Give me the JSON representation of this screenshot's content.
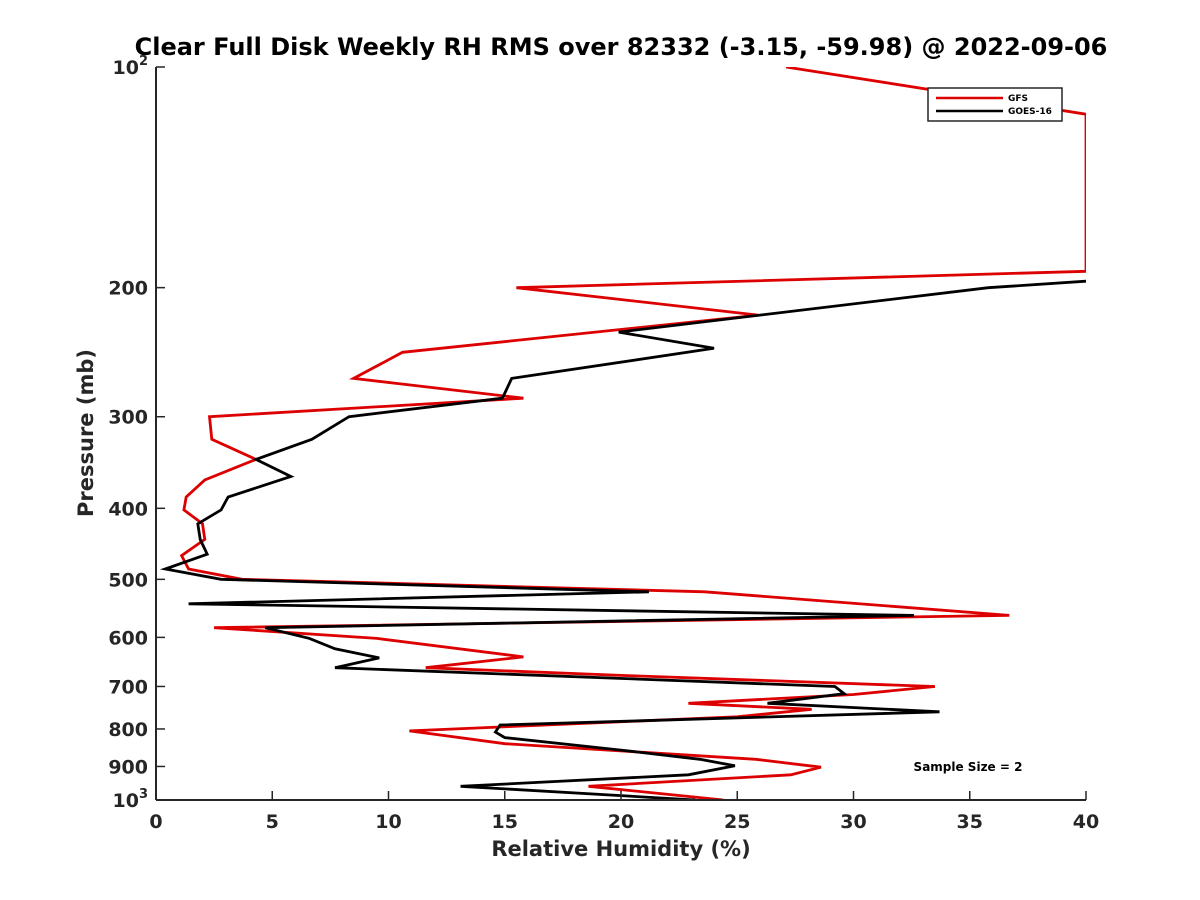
{
  "chart_data": {
    "type": "line",
    "title": "Clear Full Disk Weekly RH RMS over 82332 (-3.15, -59.98) @ 2022-09-06",
    "xlabel": "Relative Humidity (%)",
    "ylabel": "Pressure (mb)",
    "xlim": [
      0,
      40
    ],
    "ylim": [
      100,
      1000
    ],
    "y_scale": "log",
    "y_reversed": true,
    "x_ticks": [
      "0",
      "5",
      "10",
      "15",
      "20",
      "25",
      "30",
      "35",
      "40"
    ],
    "y_ticks": [
      {
        "value": 100,
        "base": "10",
        "exp": "2"
      },
      {
        "value": 200,
        "label": "200"
      },
      {
        "value": 300,
        "label": "300"
      },
      {
        "value": 400,
        "label": "400"
      },
      {
        "value": 500,
        "label": "500"
      },
      {
        "value": 600,
        "label": "600"
      },
      {
        "value": 700,
        "label": "700"
      },
      {
        "value": 800,
        "label": "800"
      },
      {
        "value": 900,
        "label": "900"
      },
      {
        "value": 1000,
        "base": "10",
        "exp": "3"
      }
    ],
    "legend_position": "top-right",
    "grid": false,
    "annotation": "Sample Size = 2",
    "series": [
      {
        "name": "GFS",
        "color": "#dd0000",
        "points": [
          [
            27.1,
            100
          ],
          [
            40,
            116
          ],
          [
            40,
            190
          ],
          [
            15.5,
            200
          ],
          [
            25.9,
            218
          ],
          [
            10.6,
            245
          ],
          [
            8.5,
            266
          ],
          [
            15.8,
            283
          ],
          [
            2.3,
            300
          ],
          [
            2.4,
            322
          ],
          [
            4.3,
            343
          ],
          [
            2.1,
            366
          ],
          [
            1.3,
            386
          ],
          [
            1.2,
            402
          ],
          [
            2,
            420
          ],
          [
            2.1,
            441
          ],
          [
            1.1,
            464
          ],
          [
            1.4,
            484
          ],
          [
            3.7,
            500
          ],
          [
            23.6,
            520
          ],
          [
            36.7,
            560
          ],
          [
            2.5,
            582
          ],
          [
            9.5,
            602
          ],
          [
            15.8,
            638
          ],
          [
            11.6,
            660
          ],
          [
            20,
            676
          ],
          [
            33.5,
            700
          ],
          [
            30,
            718
          ],
          [
            22.9,
            738
          ],
          [
            28.2,
            752
          ],
          [
            25,
            770
          ],
          [
            10.9,
            805
          ],
          [
            15,
            838
          ],
          [
            25.8,
            880
          ],
          [
            28.6,
            902
          ],
          [
            27.3,
            924
          ],
          [
            18.6,
            958
          ],
          [
            24.4,
            1000
          ]
        ]
      },
      {
        "name": "GOES-16",
        "color": "#000000",
        "points": [
          [
            40,
            196
          ],
          [
            35.8,
            200
          ],
          [
            19.9,
            230
          ],
          [
            24,
            242
          ],
          [
            15.3,
            266
          ],
          [
            14.9,
            283
          ],
          [
            8.3,
            300
          ],
          [
            6.7,
            322
          ],
          [
            4.3,
            343
          ],
          [
            5.8,
            362
          ],
          [
            3.1,
            386
          ],
          [
            2.8,
            402
          ],
          [
            1.8,
            420
          ],
          [
            1.9,
            441
          ],
          [
            2.2,
            462
          ],
          [
            0.4,
            484
          ],
          [
            2.8,
            500
          ],
          [
            21.2,
            520
          ],
          [
            1.4,
            540
          ],
          [
            32.6,
            560
          ],
          [
            4.7,
            582
          ],
          [
            6.6,
            602
          ],
          [
            7.7,
            622
          ],
          [
            9.6,
            640
          ],
          [
            7.7,
            660
          ],
          [
            29.2,
            700
          ],
          [
            29.6,
            716
          ],
          [
            26.3,
            738
          ],
          [
            33.7,
            758
          ],
          [
            14.8,
            790
          ],
          [
            14.6,
            808
          ],
          [
            15,
            822
          ],
          [
            20,
            855
          ],
          [
            23.4,
            880
          ],
          [
            24.9,
            898
          ],
          [
            22.9,
            924
          ],
          [
            13.1,
            958
          ],
          [
            23.2,
            1000
          ]
        ]
      }
    ]
  }
}
